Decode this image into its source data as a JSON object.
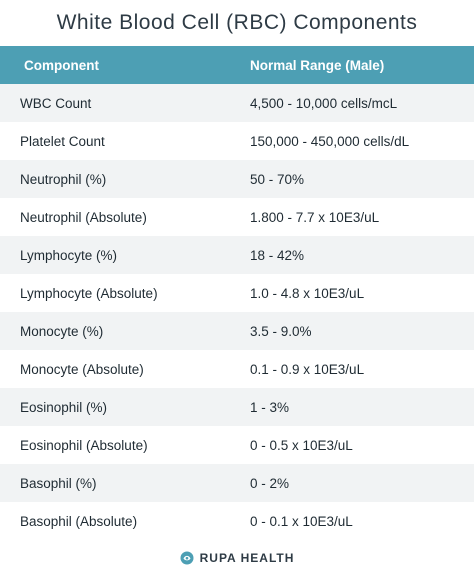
{
  "title": "White Blood Cell (RBC) Components",
  "table": {
    "headers": [
      "Component",
      "Normal Range (Male)"
    ],
    "rows": [
      [
        "WBC Count",
        "4,500 - 10,000 cells/mcL"
      ],
      [
        "Platelet Count",
        "150,000 - 450,000 cells/dL"
      ],
      [
        "Neutrophil (%)",
        "50 - 70%"
      ],
      [
        "Neutrophil (Absolute)",
        "1.800 - 7.7 x 10E3/uL"
      ],
      [
        "Lymphocyte (%)",
        "18 - 42%"
      ],
      [
        "Lymphocyte (Absolute)",
        "1.0 - 4.8 x 10E3/uL"
      ],
      [
        "Monocyte (%)",
        "3.5 - 9.0%"
      ],
      [
        "Monocyte (Absolute)",
        "0.1 - 0.9 x 10E3/uL"
      ],
      [
        "Eosinophil (%)",
        "1 - 3%"
      ],
      [
        "Eosinophil (Absolute)",
        "0 - 0.5 x 10E3/uL"
      ],
      [
        "Basophil (%)",
        "0 - 2%"
      ],
      [
        "Basophil (Absolute)",
        "0 - 0.1 x 10E3/uL"
      ]
    ]
  },
  "footer": {
    "brand": "RUPA HEALTH",
    "logo_icon": "rupa-logo-icon",
    "logo_color": "#4d9fb4"
  },
  "colors": {
    "header_bg": "#4d9fb4",
    "stripe_bg": "#f1f3f4",
    "text": "#1f2b33"
  }
}
